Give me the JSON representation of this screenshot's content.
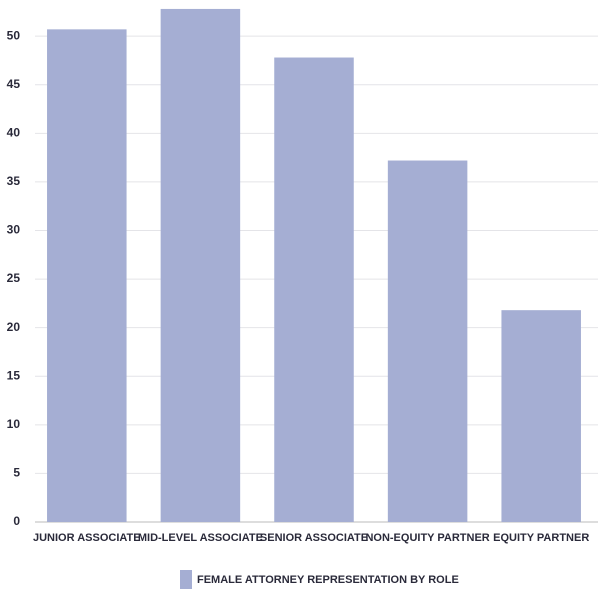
{
  "chart_data": {
    "type": "bar",
    "categories": [
      "JUNIOR ASSOCIATE",
      "MID-LEVEL ASSOCIATE",
      "SENIOR ASSOCIATE",
      "NON-EQUITY PARTNER",
      "EQUITY PARTNER"
    ],
    "series": [
      {
        "name": "FEMALE ATTORNEY REPRESENTATION BY ROLE",
        "color": "#a5aed3",
        "values": [
          50.7,
          52.8,
          47.8,
          37.2,
          21.8
        ]
      }
    ],
    "ylim": [
      0,
      53
    ],
    "yticks": [
      0,
      5,
      10,
      15,
      20,
      25,
      30,
      35,
      40,
      45,
      50
    ],
    "grid": true,
    "legend": "bottom"
  }
}
